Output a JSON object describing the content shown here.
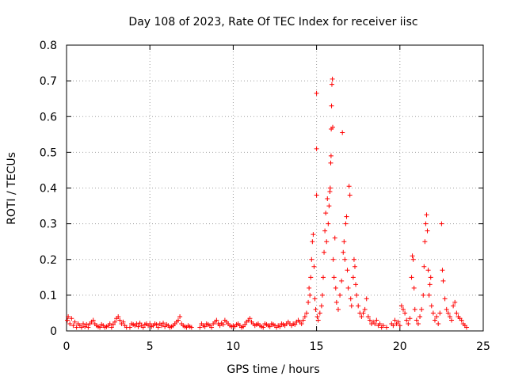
{
  "chart_data": {
    "type": "scatter",
    "title": "Day 108 of 2023, Rate Of TEC Index for receiver iisc",
    "xlabel": "GPS time / hours",
    "ylabel": "ROTI / TECUs",
    "xlim": [
      0,
      25
    ],
    "ylim": [
      0,
      0.8
    ],
    "xticks": [
      0,
      5,
      10,
      15,
      20,
      25
    ],
    "yticks": [
      0,
      0.1,
      0.2,
      0.3,
      0.4,
      0.5,
      0.6,
      0.7,
      0.8
    ],
    "xtick_labels": [
      "0",
      "5",
      "10",
      "15",
      "20",
      "25"
    ],
    "ytick_labels": [
      "0",
      "0.1",
      "0.2",
      "0.3",
      "0.4",
      "0.5",
      "0.6",
      "0.7",
      "0.8"
    ],
    "grid": true,
    "marker": "+",
    "series_color": "#ff0000",
    "series": [
      {
        "name": "ROTI",
        "points": [
          [
            0.05,
            0.03
          ],
          [
            0.1,
            0.04
          ],
          [
            0.2,
            0.02
          ],
          [
            0.3,
            0.035
          ],
          [
            0.4,
            0.015
          ],
          [
            0.5,
            0.025
          ],
          [
            0.6,
            0.01
          ],
          [
            0.7,
            0.02
          ],
          [
            0.8,
            0.015
          ],
          [
            0.9,
            0.01
          ],
          [
            1.0,
            0.02
          ],
          [
            1.1,
            0.012
          ],
          [
            1.2,
            0.018
          ],
          [
            1.3,
            0.01
          ],
          [
            1.4,
            0.02
          ],
          [
            1.5,
            0.025
          ],
          [
            1.6,
            0.03
          ],
          [
            1.7,
            0.02
          ],
          [
            1.8,
            0.015
          ],
          [
            1.9,
            0.012
          ],
          [
            2.0,
            0.01
          ],
          [
            2.1,
            0.018
          ],
          [
            2.2,
            0.015
          ],
          [
            2.3,
            0.01
          ],
          [
            2.4,
            0.012
          ],
          [
            2.5,
            0.015
          ],
          [
            2.6,
            0.02
          ],
          [
            2.7,
            0.01
          ],
          [
            2.8,
            0.018
          ],
          [
            2.9,
            0.025
          ],
          [
            3.0,
            0.035
          ],
          [
            3.1,
            0.04
          ],
          [
            3.2,
            0.03
          ],
          [
            3.3,
            0.02
          ],
          [
            3.4,
            0.025
          ],
          [
            3.5,
            0.015
          ],
          [
            3.6,
            0.01
          ],
          [
            3.8,
            0.01
          ],
          [
            3.9,
            0.02
          ],
          [
            4.0,
            0.018
          ],
          [
            4.1,
            0.015
          ],
          [
            4.2,
            0.02
          ],
          [
            4.3,
            0.012
          ],
          [
            4.4,
            0.022
          ],
          [
            4.5,
            0.015
          ],
          [
            4.6,
            0.01
          ],
          [
            4.7,
            0.018
          ],
          [
            4.8,
            0.02
          ],
          [
            4.9,
            0.015
          ],
          [
            5.0,
            0.02
          ],
          [
            5.1,
            0.012
          ],
          [
            5.2,
            0.015
          ],
          [
            5.3,
            0.02
          ],
          [
            5.4,
            0.018
          ],
          [
            5.5,
            0.01
          ],
          [
            5.6,
            0.02
          ],
          [
            5.7,
            0.015
          ],
          [
            5.8,
            0.022
          ],
          [
            5.9,
            0.012
          ],
          [
            6.0,
            0.018
          ],
          [
            6.1,
            0.015
          ],
          [
            6.2,
            0.01
          ],
          [
            6.3,
            0.012
          ],
          [
            6.4,
            0.015
          ],
          [
            6.5,
            0.02
          ],
          [
            6.6,
            0.025
          ],
          [
            6.7,
            0.03
          ],
          [
            6.8,
            0.04
          ],
          [
            6.9,
            0.02
          ],
          [
            7.0,
            0.015
          ],
          [
            7.1,
            0.012
          ],
          [
            7.2,
            0.01
          ],
          [
            7.3,
            0.015
          ],
          [
            7.4,
            0.012
          ],
          [
            7.5,
            0.01
          ],
          [
            8.0,
            0.01
          ],
          [
            8.1,
            0.02
          ],
          [
            8.2,
            0.015
          ],
          [
            8.3,
            0.012
          ],
          [
            8.4,
            0.02
          ],
          [
            8.5,
            0.018
          ],
          [
            8.6,
            0.015
          ],
          [
            8.7,
            0.01
          ],
          [
            8.8,
            0.02
          ],
          [
            8.9,
            0.025
          ],
          [
            9.0,
            0.03
          ],
          [
            9.1,
            0.02
          ],
          [
            9.2,
            0.015
          ],
          [
            9.3,
            0.022
          ],
          [
            9.4,
            0.018
          ],
          [
            9.5,
            0.03
          ],
          [
            9.6,
            0.025
          ],
          [
            9.7,
            0.02
          ],
          [
            9.8,
            0.015
          ],
          [
            9.9,
            0.012
          ],
          [
            10.0,
            0.015
          ],
          [
            10.1,
            0.012
          ],
          [
            10.2,
            0.018
          ],
          [
            10.3,
            0.02
          ],
          [
            10.4,
            0.015
          ],
          [
            10.5,
            0.01
          ],
          [
            10.6,
            0.012
          ],
          [
            10.7,
            0.018
          ],
          [
            10.8,
            0.025
          ],
          [
            10.9,
            0.03
          ],
          [
            11.0,
            0.035
          ],
          [
            11.1,
            0.025
          ],
          [
            11.2,
            0.02
          ],
          [
            11.3,
            0.015
          ],
          [
            11.4,
            0.018
          ],
          [
            11.5,
            0.02
          ],
          [
            11.6,
            0.015
          ],
          [
            11.7,
            0.012
          ],
          [
            11.8,
            0.01
          ],
          [
            11.9,
            0.02
          ],
          [
            12.0,
            0.018
          ],
          [
            12.1,
            0.015
          ],
          [
            12.2,
            0.012
          ],
          [
            12.3,
            0.02
          ],
          [
            12.4,
            0.018
          ],
          [
            12.5,
            0.015
          ],
          [
            12.6,
            0.01
          ],
          [
            12.7,
            0.015
          ],
          [
            12.8,
            0.012
          ],
          [
            12.9,
            0.02
          ],
          [
            13.0,
            0.018
          ],
          [
            13.1,
            0.015
          ],
          [
            13.2,
            0.02
          ],
          [
            13.3,
            0.025
          ],
          [
            13.4,
            0.02
          ],
          [
            13.5,
            0.015
          ],
          [
            13.6,
            0.02
          ],
          [
            13.7,
            0.018
          ],
          [
            13.8,
            0.025
          ],
          [
            13.9,
            0.03
          ],
          [
            14.0,
            0.025
          ],
          [
            14.1,
            0.02
          ],
          [
            14.2,
            0.03
          ],
          [
            14.3,
            0.04
          ],
          [
            14.4,
            0.05
          ],
          [
            14.5,
            0.08
          ],
          [
            14.55,
            0.12
          ],
          [
            14.6,
            0.1
          ],
          [
            14.65,
            0.15
          ],
          [
            14.7,
            0.2
          ],
          [
            14.75,
            0.25
          ],
          [
            14.8,
            0.27
          ],
          [
            14.85,
            0.18
          ],
          [
            14.9,
            0.09
          ],
          [
            14.95,
            0.06
          ],
          [
            15.0,
            0.38
          ],
          [
            15.0,
            0.51
          ],
          [
            15.0,
            0.665
          ],
          [
            15.05,
            0.04
          ],
          [
            15.1,
            0.03
          ],
          [
            15.2,
            0.05
          ],
          [
            15.3,
            0.07
          ],
          [
            15.35,
            0.1
          ],
          [
            15.4,
            0.15
          ],
          [
            15.45,
            0.22
          ],
          [
            15.5,
            0.28
          ],
          [
            15.55,
            0.33
          ],
          [
            15.6,
            0.25
          ],
          [
            15.65,
            0.37
          ],
          [
            15.7,
            0.3
          ],
          [
            15.75,
            0.35
          ],
          [
            15.8,
            0.39
          ],
          [
            15.82,
            0.4
          ],
          [
            15.85,
            0.47
          ],
          [
            15.87,
            0.49
          ],
          [
            15.88,
            0.565
          ],
          [
            15.9,
            0.63
          ],
          [
            15.92,
            0.69
          ],
          [
            15.95,
            0.705
          ],
          [
            15.97,
            0.57
          ],
          [
            16.0,
            0.2
          ],
          [
            16.05,
            0.15
          ],
          [
            16.1,
            0.26
          ],
          [
            16.15,
            0.12
          ],
          [
            16.2,
            0.08
          ],
          [
            16.3,
            0.06
          ],
          [
            16.4,
            0.1
          ],
          [
            16.5,
            0.14
          ],
          [
            16.55,
            0.555
          ],
          [
            16.6,
            0.22
          ],
          [
            16.65,
            0.25
          ],
          [
            16.7,
            0.2
          ],
          [
            16.75,
            0.3
          ],
          [
            16.8,
            0.32
          ],
          [
            16.85,
            0.17
          ],
          [
            16.9,
            0.12
          ],
          [
            16.95,
            0.405
          ],
          [
            17.0,
            0.38
          ],
          [
            17.05,
            0.09
          ],
          [
            17.1,
            0.07
          ],
          [
            17.2,
            0.15
          ],
          [
            17.25,
            0.2
          ],
          [
            17.3,
            0.18
          ],
          [
            17.35,
            0.13
          ],
          [
            17.4,
            0.1
          ],
          [
            17.5,
            0.07
          ],
          [
            17.6,
            0.05
          ],
          [
            17.7,
            0.04
          ],
          [
            17.8,
            0.05
          ],
          [
            17.9,
            0.06
          ],
          [
            18.0,
            0.09
          ],
          [
            18.1,
            0.04
          ],
          [
            18.2,
            0.03
          ],
          [
            18.3,
            0.02
          ],
          [
            18.4,
            0.025
          ],
          [
            18.5,
            0.02
          ],
          [
            18.6,
            0.03
          ],
          [
            18.7,
            0.015
          ],
          [
            18.8,
            0.02
          ],
          [
            18.9,
            0.01
          ],
          [
            19.0,
            0.015
          ],
          [
            19.2,
            0.01
          ],
          [
            19.5,
            0.02
          ],
          [
            19.6,
            0.015
          ],
          [
            19.7,
            0.03
          ],
          [
            19.8,
            0.02
          ],
          [
            19.9,
            0.025
          ],
          [
            20.0,
            0.015
          ],
          [
            20.1,
            0.07
          ],
          [
            20.2,
            0.06
          ],
          [
            20.3,
            0.05
          ],
          [
            20.4,
            0.03
          ],
          [
            20.5,
            0.02
          ],
          [
            20.6,
            0.035
          ],
          [
            20.7,
            0.15
          ],
          [
            20.75,
            0.21
          ],
          [
            20.8,
            0.2
          ],
          [
            20.85,
            0.12
          ],
          [
            20.9,
            0.06
          ],
          [
            21.0,
            0.03
          ],
          [
            21.1,
            0.02
          ],
          [
            21.2,
            0.04
          ],
          [
            21.3,
            0.06
          ],
          [
            21.4,
            0.1
          ],
          [
            21.45,
            0.18
          ],
          [
            21.5,
            0.25
          ],
          [
            21.55,
            0.3
          ],
          [
            21.6,
            0.325
          ],
          [
            21.65,
            0.28
          ],
          [
            21.7,
            0.17
          ],
          [
            21.75,
            0.1
          ],
          [
            21.8,
            0.13
          ],
          [
            21.85,
            0.15
          ],
          [
            21.9,
            0.07
          ],
          [
            22.0,
            0.05
          ],
          [
            22.1,
            0.03
          ],
          [
            22.2,
            0.04
          ],
          [
            22.3,
            0.02
          ],
          [
            22.4,
            0.05
          ],
          [
            22.5,
            0.3
          ],
          [
            22.55,
            0.17
          ],
          [
            22.6,
            0.14
          ],
          [
            22.7,
            0.09
          ],
          [
            22.8,
            0.06
          ],
          [
            22.9,
            0.05
          ],
          [
            23.0,
            0.04
          ],
          [
            23.1,
            0.03
          ],
          [
            23.2,
            0.07
          ],
          [
            23.3,
            0.08
          ],
          [
            23.4,
            0.05
          ],
          [
            23.5,
            0.04
          ],
          [
            23.6,
            0.035
          ],
          [
            23.7,
            0.03
          ],
          [
            23.8,
            0.02
          ],
          [
            23.9,
            0.015
          ],
          [
            24.0,
            0.01
          ]
        ]
      }
    ]
  }
}
